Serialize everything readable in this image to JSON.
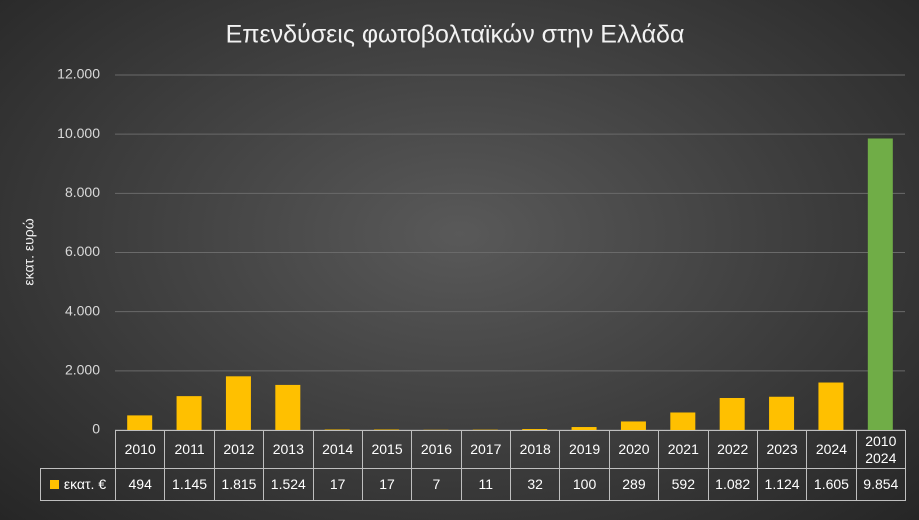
{
  "chart_data": {
    "type": "bar",
    "title": "Επενδύσεις φωτοβολταϊκών στην Ελλάδα",
    "ylabel": "εκατ. ευρώ",
    "categories": [
      "2010",
      "2011",
      "2012",
      "2013",
      "2014",
      "2015",
      "2016",
      "2017",
      "2018",
      "2019",
      "2020",
      "2021",
      "2022",
      "2023",
      "2024",
      "2010\n2024"
    ],
    "series": [
      {
        "name": "εκατ. €",
        "color": "#ffc000",
        "colors": [
          "#ffc000",
          "#ffc000",
          "#ffc000",
          "#ffc000",
          "#ffc000",
          "#ffc000",
          "#ffc000",
          "#ffc000",
          "#ffc000",
          "#ffc000",
          "#ffc000",
          "#ffc000",
          "#ffc000",
          "#ffc000",
          "#ffc000",
          "#70ad47"
        ],
        "values": [
          494,
          1145,
          1815,
          1524,
          17,
          17,
          7,
          11,
          32,
          100,
          289,
          592,
          1082,
          1124,
          1605,
          9854
        ],
        "value_labels": [
          "494",
          "1.145",
          "1.815",
          "1.524",
          "17",
          "17",
          "7",
          "11",
          "32",
          "100",
          "289",
          "592",
          "1.082",
          "1.124",
          "1.605",
          "9.854"
        ]
      }
    ],
    "ylim": [
      0,
      12000
    ],
    "yticks": [
      0,
      {
        "value": 2000,
        "label": "2.000"
      },
      {
        "value": 4000,
        "label": "4.000"
      },
      {
        "value": 6000,
        "label": "6.000"
      },
      {
        "value": 8000,
        "label": "8.000"
      },
      {
        "value": 10000,
        "label": "10.000"
      },
      {
        "value": 12000,
        "label": "12.000"
      }
    ],
    "grid": true
  }
}
